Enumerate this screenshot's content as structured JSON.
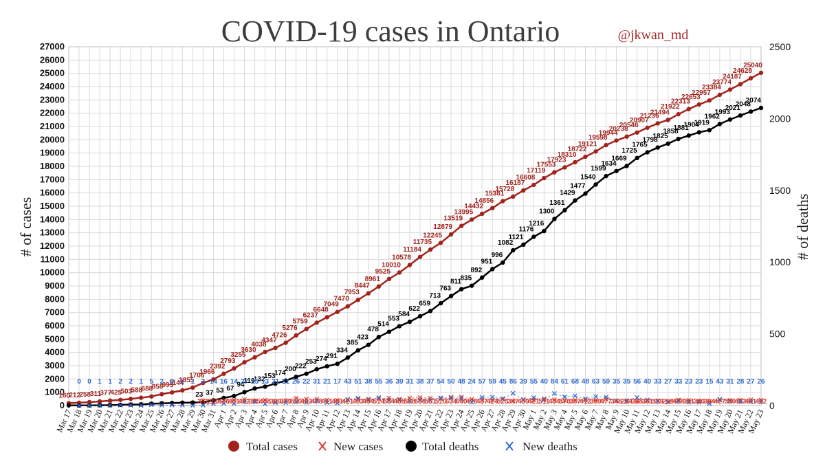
{
  "chart_data": {
    "type": "line",
    "title": "COVID-19 cases in Ontario",
    "subtitle": "@jkwan_md",
    "ylabel_left": "# of cases",
    "ylabel_right": "# of deaths",
    "ylim_left": [
      0,
      27000
    ],
    "ylim_right": [
      0,
      2500
    ],
    "yticks_left": [
      0,
      1000,
      2000,
      3000,
      4000,
      5000,
      6000,
      7000,
      8000,
      9000,
      10000,
      11000,
      12000,
      13000,
      14000,
      15000,
      16000,
      17000,
      18000,
      19000,
      20000,
      21000,
      22000,
      23000,
      24000,
      25000,
      26000,
      27000
    ],
    "yticks_right": [
      0,
      500,
      1000,
      1500,
      2000,
      2500
    ],
    "grid": true,
    "legend_position": "bottom",
    "categories": [
      "Mar 17",
      "Mar 18",
      "Mar 19",
      "Mar 20",
      "Mar 21",
      "Mar 22",
      "Mar 23",
      "Mar 24",
      "Mar 25",
      "Mar 26",
      "Mar 27",
      "Mar 28",
      "Mar 29",
      "Mar 30",
      "Mar 31",
      "Apr 1",
      "Apr 2",
      "Apr 3",
      "Apr 4",
      "Apr 5",
      "Apr 6",
      "Apr 7",
      "Apr 8",
      "Apr 9",
      "Apr 10",
      "Apr 11",
      "Apr 12",
      "Apr 13",
      "Apr 14",
      "Apr 15",
      "Apr 16",
      "Apr 17",
      "Apr 18",
      "Apr 19",
      "Apr 20",
      "Apr 21",
      "Apr 22",
      "Apr 23",
      "Apr 24",
      "Apr 25",
      "Apr 26",
      "Apr 27",
      "Apr 28",
      "Apr 29",
      "Apr 30",
      "May 1",
      "May 2",
      "May 3",
      "May 4",
      "May 5",
      "May 6",
      "May 7",
      "May 8",
      "May 9",
      "May 10",
      "May 11",
      "May 12",
      "May 13",
      "May 14",
      "May 15",
      "May 16",
      "May 17",
      "May 18",
      "May 19",
      "May 20",
      "May 21",
      "May 22",
      "May 23"
    ],
    "series": [
      {
        "name": "Total cases",
        "axis": "left",
        "color": "#a1231c",
        "marker": "circle",
        "values": [
          180,
          212,
          258,
          311,
          377,
          425,
          503,
          588,
          688,
          858,
          993,
          1144,
          1355,
          1706,
          1966,
          2392,
          2793,
          3255,
          3630,
          4038,
          4347,
          4726,
          5276,
          5759,
          6237,
          6648,
          7049,
          7470,
          7953,
          8447,
          8961,
          9525,
          10010,
          10578,
          11184,
          11735,
          12245,
          12879,
          13519,
          13995,
          14432,
          14856,
          15381,
          15728,
          16187,
          16608,
          17119,
          17553,
          17923,
          18310,
          18722,
          19121,
          19598,
          19944,
          20238,
          20546,
          20907,
          21236,
          21494,
          21922,
          22313,
          22653,
          22957,
          23384,
          23774,
          24187,
          24628,
          25040
        ]
      },
      {
        "name": "New cases",
        "axis": "left",
        "color": "#d93a2b",
        "marker": "x",
        "values": [
          null,
          32,
          46,
          53,
          66,
          48,
          78,
          85,
          100,
          170,
          135,
          151,
          211,
          351,
          260,
          426,
          401,
          462,
          375,
          408,
          309,
          379,
          550,
          483,
          478,
          411,
          401,
          421,
          483,
          494,
          514,
          564,
          485,
          568,
          606,
          551,
          510,
          634,
          640,
          476,
          437,
          424,
          525,
          347,
          459,
          421,
          511,
          434,
          370,
          387,
          412,
          399,
          477,
          346,
          294,
          308,
          361,
          329,
          258,
          428,
          391,
          340,
          304,
          427,
          390,
          413,
          441,
          412
        ]
      },
      {
        "name": "Total deaths",
        "axis": "right",
        "color": "#000000",
        "marker": "circle",
        "values": [
          1,
          1,
          1,
          2,
          3,
          5,
          7,
          8,
          13,
          15,
          18,
          20,
          21,
          23,
          37,
          53,
          67,
          94,
          119,
          132,
          153,
          174,
          200,
          222,
          253,
          274,
          291,
          334,
          385,
          423,
          478,
          514,
          553,
          584,
          622,
          659,
          713,
          763,
          811,
          835,
          892,
          951,
          996,
          1082,
          1121,
          1176,
          1216,
          1300,
          1361,
          1429,
          1477,
          1540,
          1599,
          1634,
          1669,
          1725,
          1765,
          1798,
          1825,
          1858,
          1881,
          1904,
          1919,
          1962,
          1993,
          2021,
          2048,
          2074
        ]
      },
      {
        "name": "New deaths",
        "axis": "right",
        "color": "#2f6bd0",
        "marker": "x",
        "values": [
          null,
          0,
          0,
          1,
          1,
          2,
          2,
          1,
          5,
          2,
          3,
          2,
          1,
          2,
          14,
          16,
          14,
          27,
          25,
          13,
          21,
          21,
          26,
          22,
          31,
          21,
          17,
          43,
          51,
          38,
          55,
          36,
          39,
          31,
          38,
          37,
          54,
          50,
          48,
          24,
          57,
          59,
          45,
          86,
          39,
          55,
          40,
          84,
          61,
          68,
          48,
          63,
          59,
          35,
          35,
          56,
          40,
          33,
          27,
          33,
          23,
          23,
          15,
          43,
          31,
          28,
          27,
          26
        ]
      }
    ]
  },
  "legend": {
    "total_cases": "Total cases",
    "new_cases": "New cases",
    "total_deaths": "Total deaths",
    "new_deaths": "New deaths"
  }
}
